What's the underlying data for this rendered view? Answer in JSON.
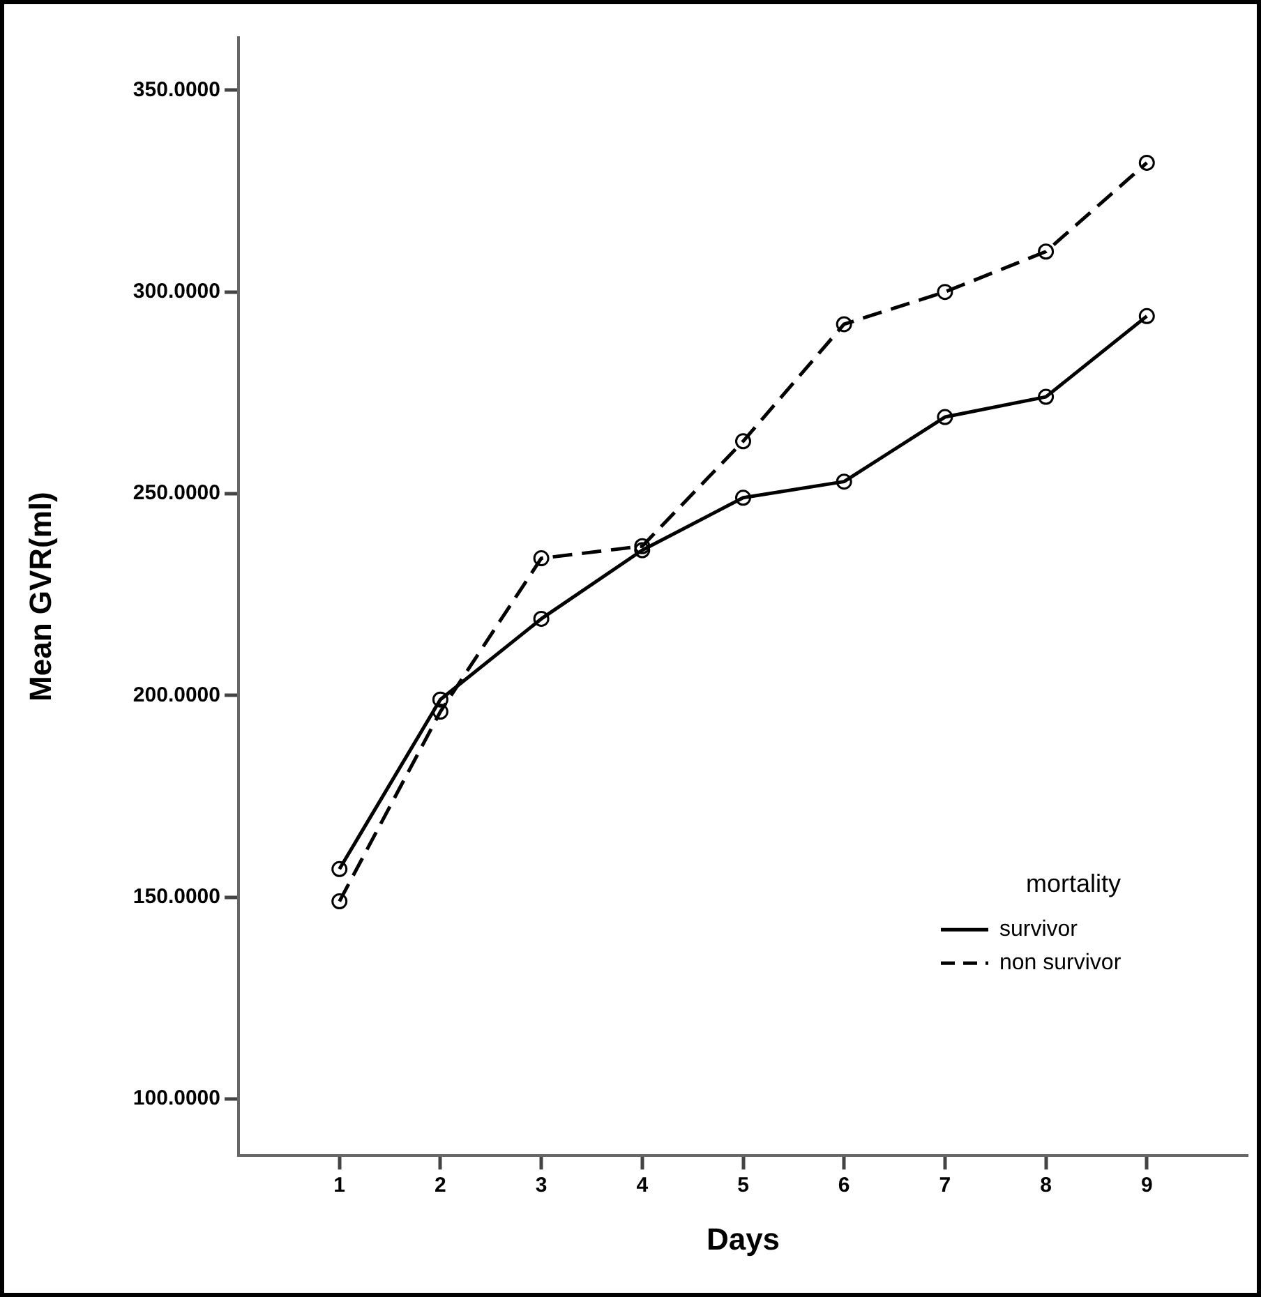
{
  "chart_data": {
    "type": "line",
    "xlabel": "Days",
    "ylabel": "Mean GVR(ml)",
    "legend_title": "mortality",
    "x": [
      1,
      2,
      3,
      4,
      5,
      6,
      7,
      8,
      9
    ],
    "series": [
      {
        "name": "survivor",
        "color": "#000000",
        "line_style": "solid",
        "values": [
          157,
          199,
          219,
          236,
          249,
          253,
          269,
          274,
          294
        ]
      },
      {
        "name": "non survivor",
        "color": "#000000",
        "line_style": "dashed",
        "values": [
          149,
          196,
          234,
          237,
          263,
          292,
          300,
          310,
          332
        ]
      }
    ],
    "xlim": [
      0,
      10
    ],
    "xticks": [
      1,
      2,
      3,
      4,
      5,
      6,
      7,
      8,
      9
    ],
    "ylim": [
      86,
      363
    ],
    "yticks": [
      {
        "value": 100,
        "label": "100.0000"
      },
      {
        "value": 150,
        "label": "150.0000"
      },
      {
        "value": 200,
        "label": "200.0000"
      },
      {
        "value": 250,
        "label": "250.0000"
      },
      {
        "value": 300,
        "label": "300.0000"
      },
      {
        "value": 350,
        "label": "350.0000"
      }
    ],
    "grid": false,
    "legend": "bottom right",
    "marker": "circle"
  }
}
